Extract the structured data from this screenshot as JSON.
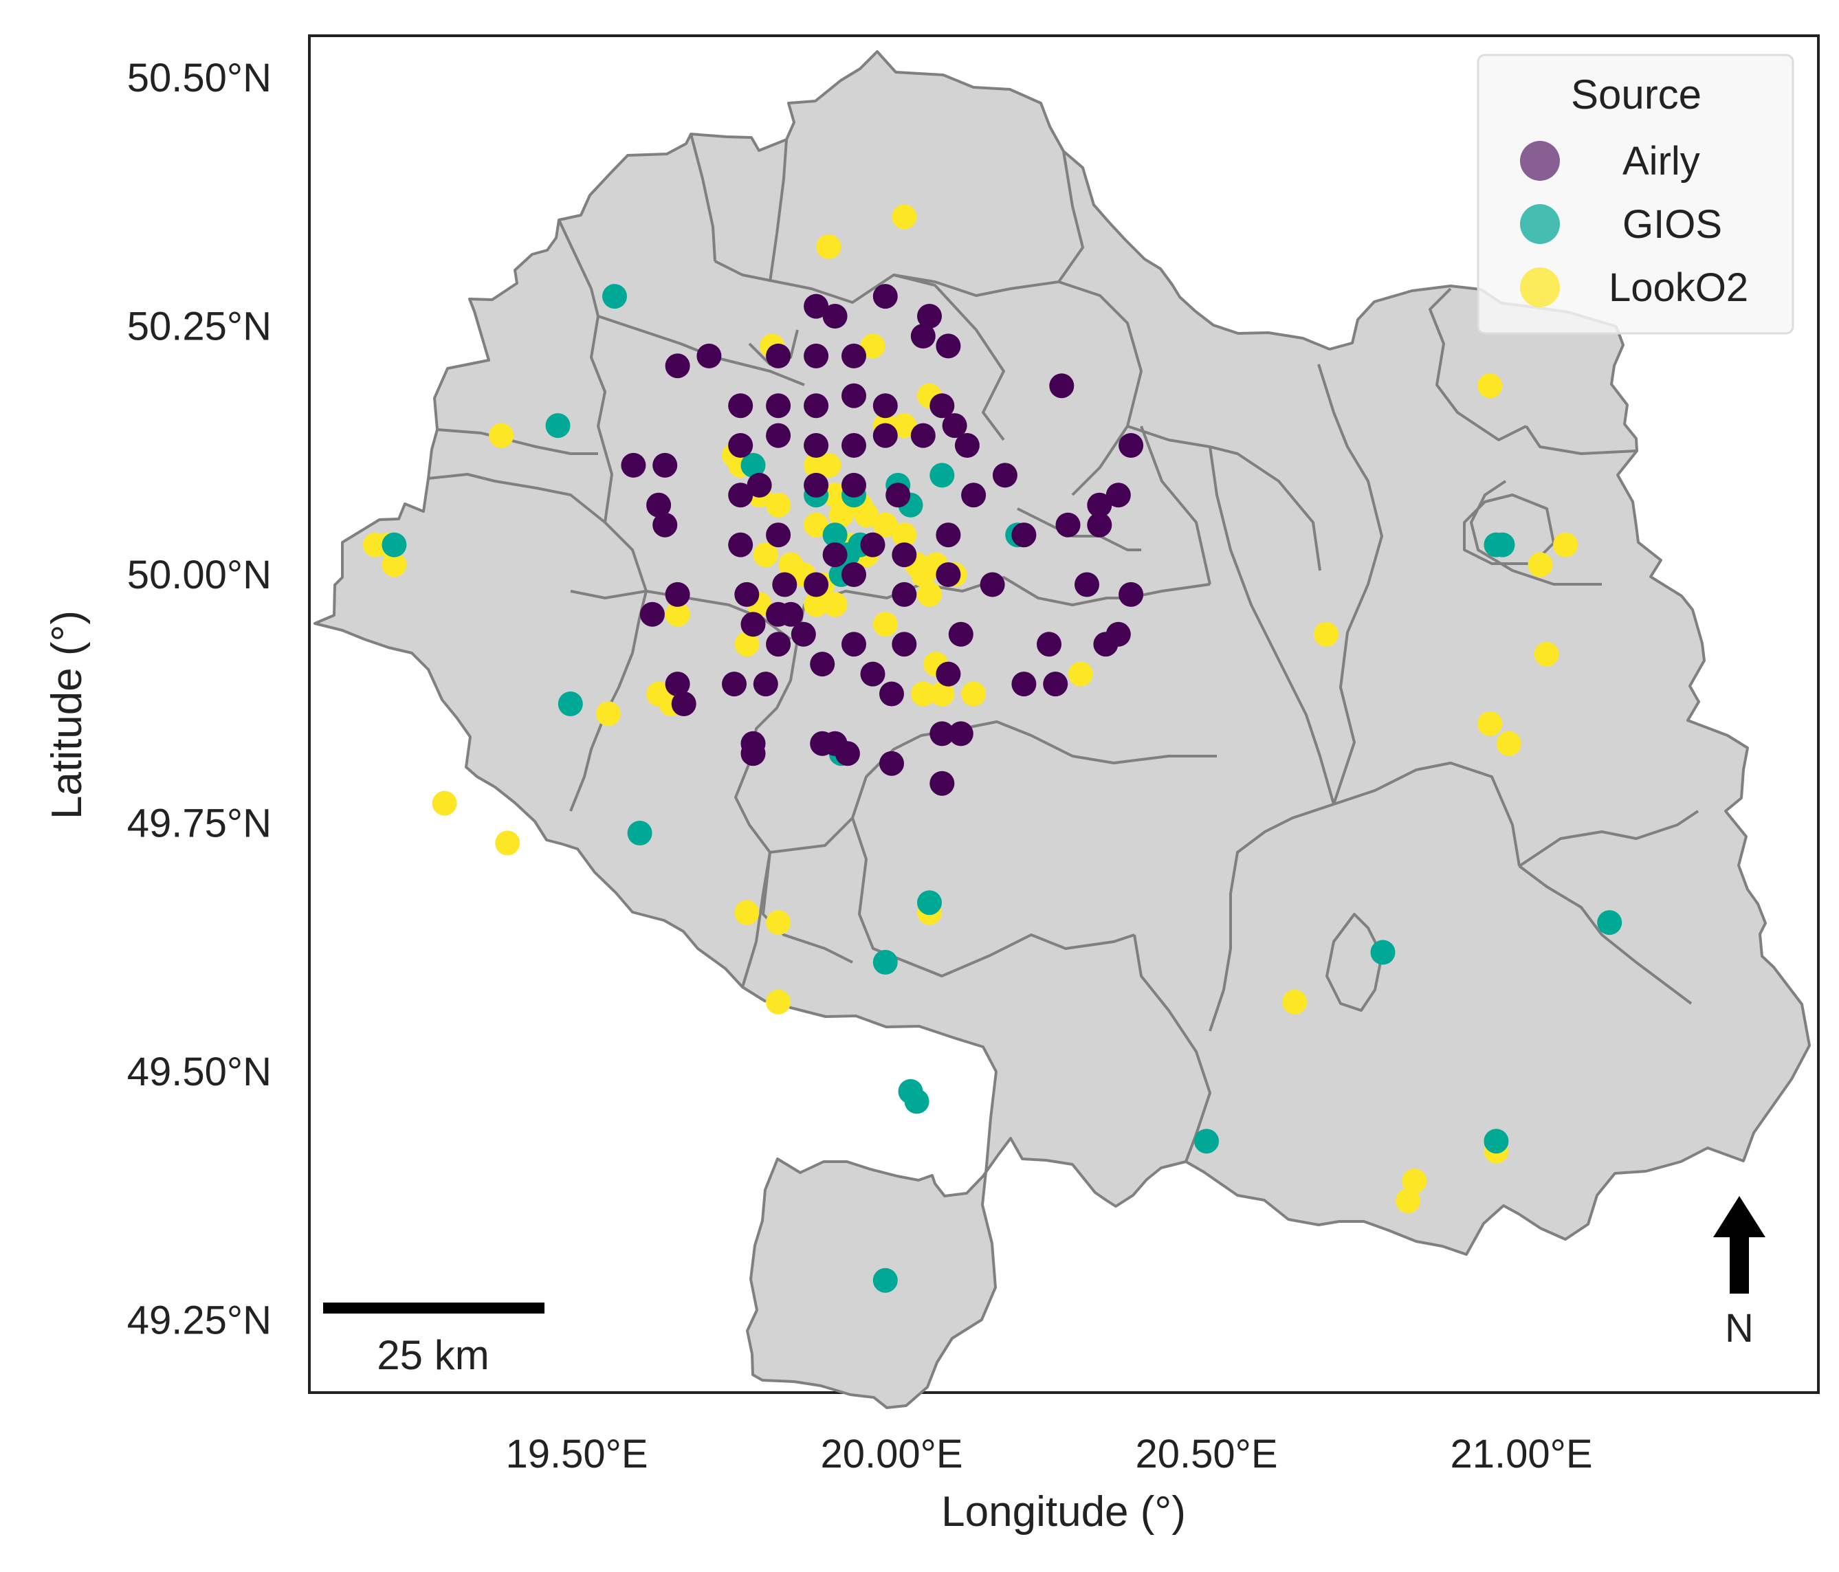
{
  "map": {
    "xlabel": "Longitude (°)",
    "ylabel": "Latitude (°)",
    "x_ticks": [
      "19.50°E",
      "20.00°E",
      "20.50°E",
      "21.00°E"
    ],
    "y_ticks": [
      "50.50°N",
      "50.25°N",
      "50.00°N",
      "49.75°N",
      "49.50°N",
      "49.25°N"
    ],
    "x_tick_values": [
      19.5,
      20.0,
      20.5,
      21.0
    ],
    "y_tick_values": [
      50.5,
      50.25,
      50.0,
      49.75,
      49.5,
      49.25
    ],
    "xlim": [
      19.06,
      21.46
    ],
    "ylim": [
      49.17,
      50.54
    ],
    "region_color": "#d3d3d3",
    "border_color": "#808080",
    "scale_bar_label": "25 km",
    "north_label": "N"
  },
  "legend": {
    "title": "Source",
    "placement": "top-right",
    "items": [
      {
        "label": "Airly",
        "color": "#440154"
      },
      {
        "label": "GIOS",
        "color": "#00A896"
      },
      {
        "label": "LookO2",
        "color": "#FDE725"
      }
    ]
  },
  "chart_data": {
    "type": "scatter",
    "series": [
      {
        "name": "Airly",
        "color": "#440154",
        "points": [
          [
            19.88,
            50.27
          ],
          [
            19.91,
            50.26
          ],
          [
            19.99,
            50.28
          ],
          [
            20.06,
            50.26
          ],
          [
            20.05,
            50.24
          ],
          [
            19.82,
            50.22
          ],
          [
            19.88,
            50.22
          ],
          [
            19.94,
            50.22
          ],
          [
            20.09,
            50.23
          ],
          [
            19.66,
            50.21
          ],
          [
            19.71,
            50.22
          ],
          [
            19.76,
            50.17
          ],
          [
            19.82,
            50.17
          ],
          [
            19.88,
            50.17
          ],
          [
            19.94,
            50.18
          ],
          [
            19.99,
            50.17
          ],
          [
            20.08,
            50.17
          ],
          [
            20.1,
            50.15
          ],
          [
            20.27,
            50.19
          ],
          [
            19.59,
            50.11
          ],
          [
            19.64,
            50.11
          ],
          [
            19.76,
            50.13
          ],
          [
            19.82,
            50.14
          ],
          [
            19.88,
            50.13
          ],
          [
            19.94,
            50.13
          ],
          [
            19.99,
            50.14
          ],
          [
            20.05,
            50.14
          ],
          [
            20.12,
            50.13
          ],
          [
            20.38,
            50.13
          ],
          [
            19.63,
            50.07
          ],
          [
            19.64,
            50.05
          ],
          [
            19.76,
            50.08
          ],
          [
            19.79,
            50.09
          ],
          [
            19.88,
            50.09
          ],
          [
            19.94,
            50.09
          ],
          [
            20.01,
            50.08
          ],
          [
            20.13,
            50.08
          ],
          [
            20.18,
            50.1
          ],
          [
            20.33,
            50.07
          ],
          [
            20.36,
            50.08
          ],
          [
            20.28,
            50.05
          ],
          [
            20.33,
            50.05
          ],
          [
            19.76,
            50.03
          ],
          [
            19.82,
            50.04
          ],
          [
            19.91,
            50.02
          ],
          [
            19.97,
            50.03
          ],
          [
            20.02,
            50.02
          ],
          [
            20.09,
            50.04
          ],
          [
            20.21,
            50.04
          ],
          [
            19.66,
            49.98
          ],
          [
            19.77,
            49.98
          ],
          [
            19.83,
            49.99
          ],
          [
            19.88,
            49.99
          ],
          [
            19.94,
            50.0
          ],
          [
            20.02,
            49.98
          ],
          [
            20.09,
            50.0
          ],
          [
            20.16,
            49.99
          ],
          [
            20.31,
            49.99
          ],
          [
            20.38,
            49.98
          ],
          [
            19.62,
            49.96
          ],
          [
            19.78,
            49.95
          ],
          [
            19.82,
            49.96
          ],
          [
            19.84,
            49.96
          ],
          [
            19.86,
            49.94
          ],
          [
            19.82,
            49.93
          ],
          [
            19.89,
            49.91
          ],
          [
            19.94,
            49.93
          ],
          [
            20.02,
            49.93
          ],
          [
            20.11,
            49.94
          ],
          [
            20.25,
            49.93
          ],
          [
            20.34,
            49.93
          ],
          [
            20.36,
            49.94
          ],
          [
            19.66,
            49.89
          ],
          [
            19.67,
            49.87
          ],
          [
            19.75,
            49.89
          ],
          [
            19.8,
            49.89
          ],
          [
            19.97,
            49.9
          ],
          [
            20.0,
            49.88
          ],
          [
            20.09,
            49.9
          ],
          [
            20.21,
            49.89
          ],
          [
            20.26,
            49.89
          ],
          [
            19.78,
            49.83
          ],
          [
            19.78,
            49.82
          ],
          [
            19.89,
            49.83
          ],
          [
            19.91,
            49.83
          ],
          [
            19.93,
            49.82
          ],
          [
            20.0,
            49.81
          ],
          [
            20.08,
            49.84
          ],
          [
            20.11,
            49.84
          ],
          [
            20.08,
            49.79
          ]
        ]
      },
      {
        "name": "GIOS",
        "color": "#00A896",
        "points": [
          [
            19.56,
            50.28
          ],
          [
            19.47,
            50.15
          ],
          [
            19.21,
            50.03
          ],
          [
            19.78,
            50.11
          ],
          [
            19.88,
            50.08
          ],
          [
            19.94,
            50.08
          ],
          [
            20.01,
            50.09
          ],
          [
            20.03,
            50.07
          ],
          [
            20.08,
            50.1
          ],
          [
            20.2,
            50.04
          ],
          [
            19.91,
            50.04
          ],
          [
            19.93,
            50.02
          ],
          [
            19.95,
            50.03
          ],
          [
            19.92,
            50.0
          ],
          [
            19.49,
            49.87
          ],
          [
            19.6,
            49.74
          ],
          [
            20.06,
            49.67
          ],
          [
            19.99,
            49.61
          ],
          [
            20.03,
            49.48
          ],
          [
            20.04,
            49.47
          ],
          [
            20.5,
            49.43
          ],
          [
            20.78,
            49.62
          ],
          [
            20.96,
            49.43
          ],
          [
            21.14,
            49.65
          ],
          [
            20.96,
            50.03
          ],
          [
            20.97,
            50.03
          ],
          [
            19.99,
            49.29
          ],
          [
            19.92,
            49.82
          ]
        ]
      },
      {
        "name": "LookO2",
        "color": "#FDE725",
        "points": [
          [
            19.9,
            50.33
          ],
          [
            20.02,
            50.36
          ],
          [
            19.81,
            50.23
          ],
          [
            19.97,
            50.23
          ],
          [
            20.06,
            50.18
          ],
          [
            20.02,
            50.15
          ],
          [
            19.99,
            50.15
          ],
          [
            19.38,
            50.14
          ],
          [
            19.75,
            50.12
          ],
          [
            19.76,
            50.11
          ],
          [
            19.88,
            50.11
          ],
          [
            19.9,
            50.11
          ],
          [
            19.79,
            50.08
          ],
          [
            19.82,
            50.07
          ],
          [
            19.91,
            50.08
          ],
          [
            19.95,
            50.07
          ],
          [
            19.96,
            50.06
          ],
          [
            19.92,
            50.06
          ],
          [
            19.88,
            50.05
          ],
          [
            19.99,
            50.05
          ],
          [
            20.02,
            50.04
          ],
          [
            19.93,
            50.03
          ],
          [
            19.96,
            50.02
          ],
          [
            20.04,
            50.01
          ],
          [
            19.18,
            50.03
          ],
          [
            19.2,
            50.03
          ],
          [
            19.21,
            50.01
          ],
          [
            19.8,
            50.02
          ],
          [
            19.84,
            50.01
          ],
          [
            19.86,
            50.0
          ],
          [
            19.89,
            49.99
          ],
          [
            20.05,
            50.0
          ],
          [
            20.07,
            50.01
          ],
          [
            20.1,
            50.0
          ],
          [
            20.06,
            49.98
          ],
          [
            19.79,
            49.97
          ],
          [
            19.88,
            49.97
          ],
          [
            19.91,
            49.97
          ],
          [
            19.66,
            49.96
          ],
          [
            19.77,
            49.93
          ],
          [
            19.99,
            49.95
          ],
          [
            20.07,
            49.91
          ],
          [
            20.3,
            49.9
          ],
          [
            19.63,
            49.88
          ],
          [
            19.65,
            49.87
          ],
          [
            19.67,
            49.87
          ],
          [
            19.55,
            49.86
          ],
          [
            20.05,
            49.88
          ],
          [
            20.08,
            49.88
          ],
          [
            20.13,
            49.88
          ],
          [
            19.29,
            49.77
          ],
          [
            19.39,
            49.73
          ],
          [
            19.77,
            49.66
          ],
          [
            19.82,
            49.65
          ],
          [
            20.06,
            49.66
          ],
          [
            19.82,
            49.57
          ],
          [
            20.64,
            49.57
          ],
          [
            20.69,
            49.94
          ],
          [
            20.95,
            49.85
          ],
          [
            20.98,
            49.83
          ],
          [
            21.03,
            50.01
          ],
          [
            21.07,
            50.03
          ],
          [
            21.04,
            49.92
          ],
          [
            20.95,
            50.19
          ],
          [
            20.83,
            49.39
          ],
          [
            20.82,
            49.37
          ],
          [
            20.96,
            49.42
          ]
        ]
      }
    ]
  }
}
